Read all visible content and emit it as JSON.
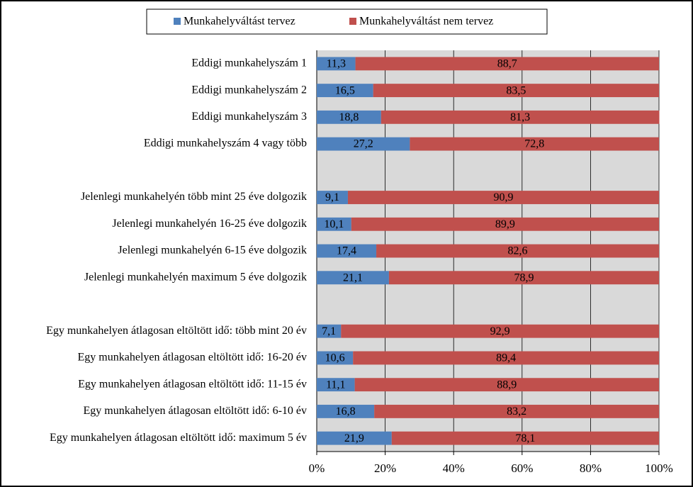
{
  "chart_data": {
    "type": "stacked-bar-horizontal",
    "categories": [
      "Eddigi munkahelyszám 1",
      "Eddigi munkahelyszám 2",
      "Eddigi munkahelyszám 3",
      "Eddigi munkahelyszám 4 vagy több",
      null,
      "Jelenlegi munkahelyén több mint 25 éve dolgozik",
      "Jelenlegi munkahelyén 16-25 éve dolgozik",
      "Jelenlegi munkahelyén 6-15 éve dolgozik",
      "Jelenlegi munkahelyén maximum 5 éve dolgozik",
      null,
      "Egy munkahelyen átlagosan eltöltött idő: több mint 20 év",
      "Egy munkahelyen átlagosan eltöltött idő: 16-20 év",
      "Egy munkahelyen átlagosan eltöltött idő: 11-15 év",
      "Egy munkahelyen átlagosan eltöltött idő: 6-10 év",
      "Egy munkahelyen átlagosan eltöltött idő: maximum 5 év"
    ],
    "series": [
      {
        "name": "Munkahelyváltást tervez",
        "color": "#4f81bd",
        "values": [
          11.3,
          16.5,
          18.8,
          27.2,
          null,
          9.1,
          10.1,
          17.4,
          21.1,
          null,
          7.1,
          10.6,
          11.1,
          16.8,
          21.9
        ],
        "value_labels": [
          "11,3",
          "16,5",
          "18,8",
          "27,2",
          null,
          "9,1",
          "10,1",
          "17,4",
          "21,1",
          null,
          "7,1",
          "10,6",
          "11,1",
          "16,8",
          "21,9"
        ]
      },
      {
        "name": "Munkahelyváltást nem tervez",
        "color": "#c0504d",
        "values": [
          88.7,
          83.5,
          81.3,
          72.8,
          null,
          90.9,
          89.9,
          82.6,
          78.9,
          null,
          92.9,
          89.4,
          88.9,
          83.2,
          78.1
        ],
        "value_labels": [
          "88,7",
          "83,5",
          "81,3",
          "72,8",
          null,
          "90,9",
          "89,9",
          "82,6",
          "78,9",
          null,
          "92,9",
          "89,4",
          "88,9",
          "83,2",
          "78,1"
        ]
      }
    ],
    "xlim": [
      0,
      100
    ],
    "xticks": [
      {
        "value": 0,
        "label": "0%"
      },
      {
        "value": 20,
        "label": "20%"
      },
      {
        "value": 40,
        "label": "40%"
      },
      {
        "value": 60,
        "label": "60%"
      },
      {
        "value": 80,
        "label": "80%"
      },
      {
        "value": 100,
        "label": "100%"
      }
    ],
    "grid": true,
    "legend": "top"
  }
}
